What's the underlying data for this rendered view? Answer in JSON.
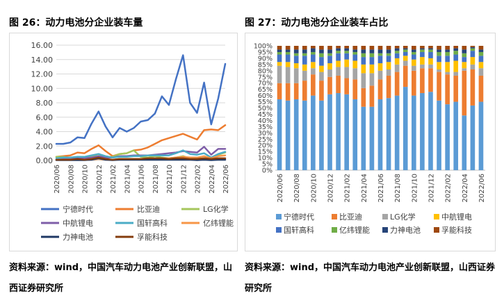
{
  "left": {
    "title": "图 26：动力电池分企业装车量",
    "source": "资料来源：wind，中国汽车动力电池产业创新联盟，山西证券研究所"
  },
  "right": {
    "title": "图 27：动力电池分企业装车占比",
    "source": "资料来源：wind，中国汽车动力电池产业创新联盟，山西证券研究所"
  },
  "chart_data": [
    {
      "type": "line",
      "title": "",
      "xlabel": "",
      "ylabel": "",
      "ylim": [
        0,
        16
      ],
      "yticks": [
        "0.00",
        "2.00",
        "4.00",
        "6.00",
        "8.00",
        "10.00",
        "12.00",
        "14.00",
        "16.00"
      ],
      "grid": true,
      "legend_position": "bottom",
      "x": [
        "2020/06",
        "2020/07",
        "2020/08",
        "2020/09",
        "2020/10",
        "2020/11",
        "2020/12",
        "2021/01",
        "2021/02",
        "2021/03",
        "2021/04",
        "2021/05",
        "2021/06",
        "2021/07",
        "2021/08",
        "2021/09",
        "2021/10",
        "2021/11",
        "2021/12",
        "2022/01",
        "2022/02",
        "2022/03",
        "2022/04",
        "2022/05",
        "2022/06"
      ],
      "xtick_labels": [
        "2020/06",
        "2020/08",
        "2020/10",
        "2020/12",
        "2021/02",
        "2021/04",
        "2021/06",
        "2021/08",
        "2021/10",
        "2021/12",
        "2022/02",
        "2022/04",
        "2022/06"
      ],
      "series": [
        {
          "name": "宁德时代",
          "color": "#4472c4",
          "values": [
            2.3,
            2.3,
            2.5,
            3.2,
            3.1,
            5.1,
            6.8,
            4.7,
            3.2,
            4.5,
            4.0,
            4.5,
            5.4,
            5.6,
            6.5,
            8.9,
            7.7,
            11.3,
            14.6,
            8.0,
            6.6,
            10.8,
            5.0,
            8.6,
            13.4
          ]
        },
        {
          "name": "比亚迪",
          "color": "#ed7d31",
          "values": [
            0.5,
            0.6,
            0.7,
            1.1,
            1.0,
            1.6,
            2.1,
            1.3,
            0.6,
            0.9,
            1.0,
            1.4,
            1.5,
            1.8,
            2.3,
            2.8,
            3.1,
            3.4,
            3.7,
            3.3,
            2.9,
            4.2,
            4.3,
            4.2,
            4.9
          ]
        },
        {
          "name": "LG化学",
          "color": "#a5c65c",
          "values": [
            0.5,
            0.5,
            0.3,
            0.4,
            0.3,
            0.5,
            0.9,
            0.4,
            0.5,
            0.9,
            1.0,
            1.4,
            0.5,
            0.4,
            0.6,
            0.4,
            0.3,
            0.4,
            0.6,
            0.3,
            0.2,
            0.3,
            0.3,
            0.8,
            1.1
          ]
        },
        {
          "name": "中航锂电",
          "color": "#7e5ea8",
          "values": [
            0.1,
            0.2,
            0.2,
            0.3,
            0.3,
            0.4,
            0.6,
            0.4,
            0.4,
            0.6,
            0.6,
            0.7,
            0.7,
            0.7,
            0.8,
            0.9,
            1.0,
            1.1,
            1.3,
            1.2,
            1.1,
            1.9,
            0.8,
            1.6,
            1.6
          ]
        },
        {
          "name": "国轩高科",
          "color": "#4bacc6",
          "values": [
            0.3,
            0.4,
            0.4,
            0.5,
            0.5,
            0.7,
            0.9,
            0.6,
            0.4,
            0.5,
            0.5,
            0.6,
            0.6,
            0.7,
            0.7,
            0.7,
            0.7,
            1.0,
            1.4,
            0.9,
            0.8,
            1.0,
            0.4,
            0.9,
            1.2
          ]
        },
        {
          "name": "亿纬锂能",
          "color": "#f79646",
          "values": [
            0.1,
            0.1,
            0.1,
            0.1,
            0.1,
            0.1,
            0.2,
            0.1,
            0.1,
            0.2,
            0.2,
            0.2,
            0.2,
            0.2,
            0.2,
            0.3,
            0.3,
            0.4,
            0.5,
            0.4,
            0.4,
            0.6,
            0.3,
            0.6,
            0.7
          ]
        },
        {
          "name": "力神电池",
          "color": "#1f3864",
          "values": [
            0.05,
            0.05,
            0.05,
            0.05,
            0.05,
            0.1,
            0.3,
            0.1,
            0.05,
            0.1,
            0.1,
            0.1,
            0.1,
            0.1,
            0.1,
            0.1,
            0.1,
            0.1,
            0.1,
            0.1,
            0.05,
            0.1,
            0.05,
            0.1,
            0.1
          ]
        },
        {
          "name": "孚能科技",
          "color": "#843c0c",
          "values": [
            0.1,
            0.1,
            0.1,
            0.2,
            0.1,
            0.2,
            0.4,
            0.2,
            0.1,
            0.2,
            0.2,
            0.2,
            0.2,
            0.3,
            0.3,
            0.3,
            0.2,
            0.3,
            0.3,
            0.2,
            0.2,
            0.3,
            0.2,
            0.3,
            0.3
          ]
        }
      ]
    },
    {
      "type": "bar",
      "stacked": true,
      "title": "",
      "xlabel": "",
      "ylabel": "",
      "ylim": [
        0,
        100
      ],
      "yticks": [
        "0%",
        "5%",
        "10%",
        "15%",
        "20%",
        "25%",
        "30%",
        "35%",
        "40%",
        "45%",
        "50%",
        "55%",
        "60%",
        "65%",
        "70%",
        "75%",
        "80%",
        "85%",
        "90%",
        "95%",
        "100%"
      ],
      "grid": false,
      "legend_position": "bottom",
      "categories": [
        "2020/06",
        "2020/07",
        "2020/08",
        "2020/09",
        "2020/10",
        "2020/11",
        "2020/12",
        "2021/01",
        "2021/02",
        "2021/03",
        "2021/04",
        "2021/05",
        "2021/06",
        "2021/07",
        "2021/08",
        "2021/09",
        "2021/10",
        "2021/11",
        "2021/12",
        "2022/01",
        "2022/02",
        "2022/03",
        "2022/04",
        "2022/05",
        "2022/06"
      ],
      "xtick_labels": [
        "2020/06",
        "2020/08",
        "2020/10",
        "2020/12",
        "2021/02",
        "2021/04",
        "2021/06",
        "2021/08",
        "2021/10",
        "2021/12",
        "2022/02",
        "2022/04",
        "2022/06"
      ],
      "series": [
        {
          "name": "宁德时代",
          "color": "#5b9bd5",
          "values": [
            57,
            56,
            57,
            56,
            60,
            56,
            61,
            62,
            61,
            57,
            51,
            51,
            57,
            58,
            60,
            67,
            60,
            62,
            63,
            56,
            53,
            55,
            44,
            52,
            55
          ]
        },
        {
          "name": "比亚迪",
          "color": "#ed7d31",
          "values": [
            13,
            14,
            13,
            16,
            17,
            16,
            14,
            14,
            13,
            16,
            15,
            17,
            16,
            18,
            19,
            17,
            20,
            20,
            19,
            23,
            24,
            21,
            36,
            29,
            21
          ]
        },
        {
          "name": "LG化学",
          "color": "#a5a5a5",
          "values": [
            14,
            13,
            12,
            8,
            5,
            7,
            6,
            7,
            9,
            9,
            12,
            10,
            7,
            5,
            6,
            4,
            4,
            3,
            3,
            2,
            2,
            3,
            2,
            4,
            6
          ]
        },
        {
          "name": "中航锂电",
          "color": "#ffc000",
          "values": [
            3,
            4,
            4,
            5,
            5,
            5,
            5,
            5,
            6,
            6,
            7,
            7,
            6,
            6,
            5,
            4,
            5,
            6,
            5,
            6,
            8,
            9,
            5,
            6,
            5
          ]
        },
        {
          "name": "国轩高科",
          "color": "#4472c4",
          "values": [
            6,
            6,
            6,
            7,
            6,
            7,
            6,
            6,
            5,
            5,
            6,
            6,
            6,
            5,
            4,
            3,
            4,
            4,
            5,
            5,
            5,
            5,
            4,
            5,
            5
          ]
        },
        {
          "name": "亿纬锂能",
          "color": "#70ad47",
          "values": [
            2,
            2,
            2,
            2,
            2,
            3,
            2,
            2,
            2,
            2,
            3,
            3,
            2,
            2,
            2,
            2,
            2,
            2,
            2,
            3,
            3,
            3,
            3,
            2,
            3
          ]
        },
        {
          "name": "力神电池",
          "color": "#264478",
          "values": [
            2,
            2,
            3,
            3,
            3,
            3,
            3,
            2,
            2,
            2,
            3,
            3,
            3,
            3,
            2,
            1,
            2,
            1,
            1,
            2,
            2,
            2,
            3,
            1,
            2
          ]
        },
        {
          "name": "孚能科技",
          "color": "#9e480e",
          "values": [
            3,
            3,
            3,
            3,
            2,
            3,
            3,
            2,
            2,
            3,
            3,
            3,
            3,
            3,
            2,
            2,
            3,
            2,
            2,
            3,
            3,
            2,
            3,
            1,
            3
          ]
        }
      ]
    }
  ]
}
